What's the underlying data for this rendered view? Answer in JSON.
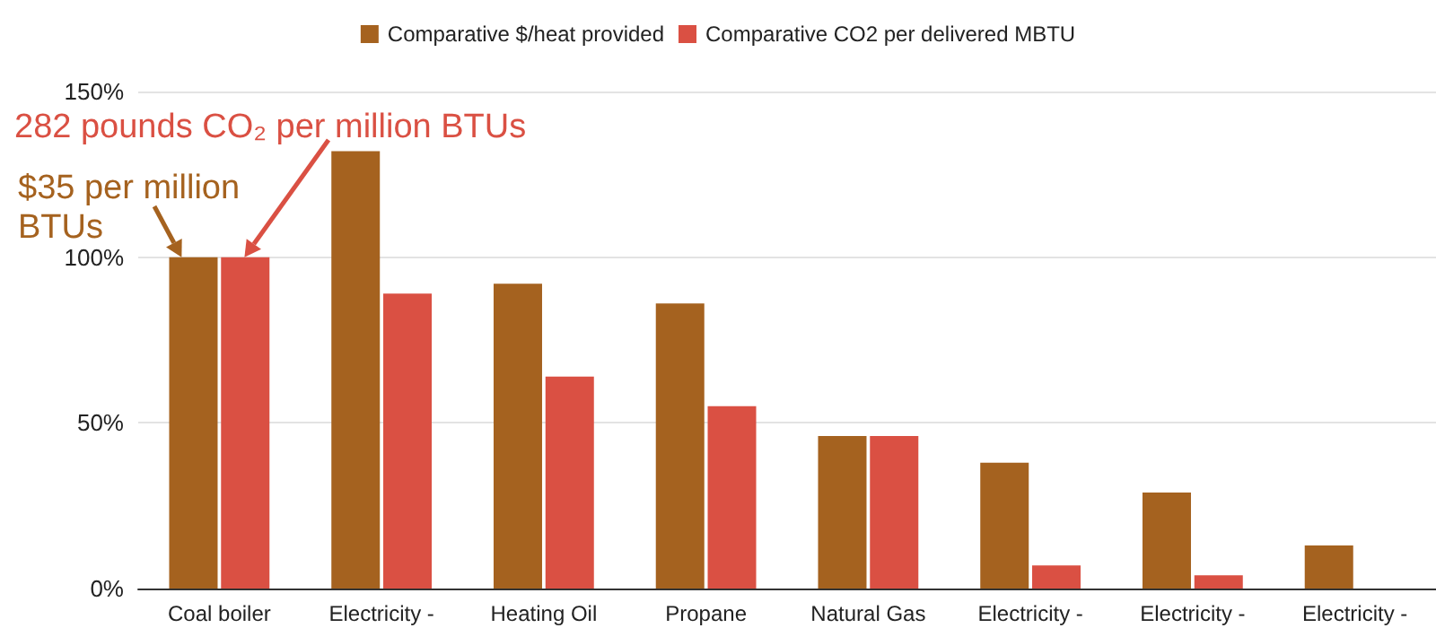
{
  "chart_data": {
    "type": "bar",
    "categories": [
      "Coal boiler",
      "Electricity -",
      "Heating Oil",
      "Propane",
      "Natural Gas",
      "Electricity -",
      "Electricity -",
      "Electricity -"
    ],
    "series": [
      {
        "name": "Comparative $/heat provided",
        "color": "#a5621f",
        "values": [
          100,
          132,
          92,
          86,
          46,
          38,
          29,
          13
        ]
      },
      {
        "name": "Comparative CO2 per delivered MBTU",
        "color": "#da5043",
        "values": [
          100,
          89,
          64,
          55,
          46,
          7,
          4,
          0
        ]
      }
    ],
    "ylim": [
      0,
      150
    ],
    "yticks": [
      {
        "value": 0,
        "label": "0%"
      },
      {
        "value": 50,
        "label": "50%"
      },
      {
        "value": 100,
        "label": "100%"
      },
      {
        "value": 150,
        "label": "150%"
      }
    ],
    "grid": "y",
    "legend": "top",
    "annotations": [
      "282 pounds CO₂ per million BTUs",
      "$35 per million BTUs"
    ]
  }
}
